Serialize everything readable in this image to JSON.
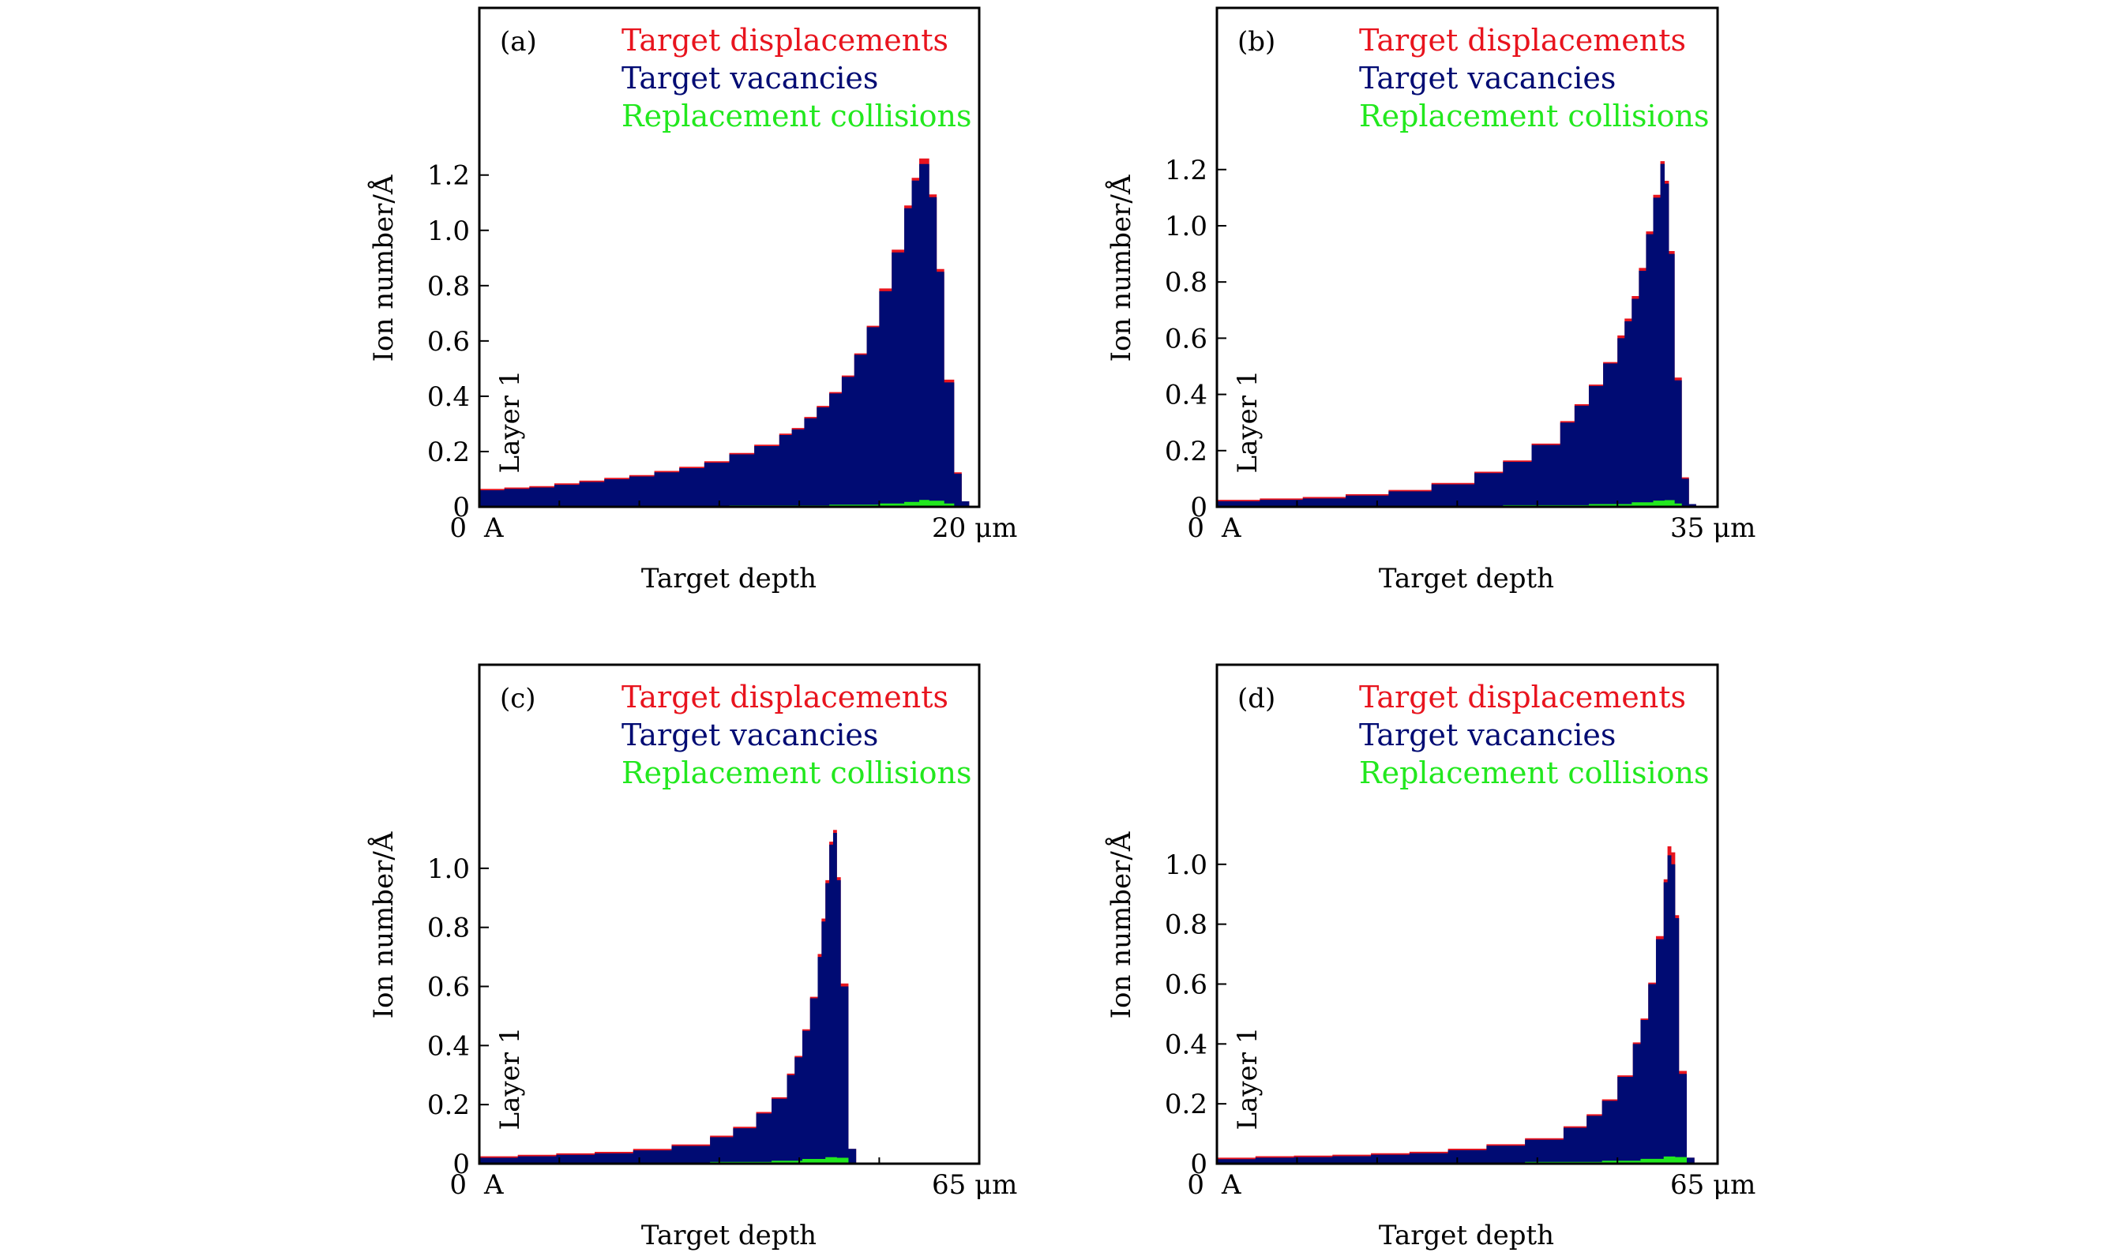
{
  "colors": {
    "displacements": "#e8141e",
    "vacancies": "#000b73",
    "replacements": "#22e81e",
    "axis": "#000000",
    "background": "#ffffff"
  },
  "chart_data": [
    {
      "type": "area",
      "panel_label": "(a)",
      "xlabel": "Target depth",
      "ylabel": "Ion number/Å",
      "x_tick_labels": {
        "start": "0",
        "start_marker": "A",
        "end": "20 μm"
      },
      "layer_label": "Layer 1",
      "xlim": [
        0,
        20
      ],
      "ylim": [
        0,
        1.2
      ],
      "yticks": [
        "0",
        "0.2",
        "0.4",
        "0.6",
        "0.8",
        "1.0",
        "1.2"
      ],
      "grid": false,
      "legend_position": "top-right",
      "legend": [
        "Target displacements",
        "Target vacancies",
        "Replacement collisions"
      ],
      "x_unit": "μm",
      "series": [
        {
          "name": "Target vacancies",
          "x": [
            0,
            1,
            2,
            3,
            4,
            5,
            6,
            7,
            8,
            9,
            10,
            11,
            12,
            12.5,
            13,
            13.5,
            14,
            14.5,
            15,
            15.5,
            16,
            16.5,
            17,
            17.3,
            17.6,
            18,
            18.3,
            18.6,
            19,
            19.3,
            19.6,
            20
          ],
          "values": [
            0.06,
            0.065,
            0.07,
            0.08,
            0.09,
            0.1,
            0.11,
            0.125,
            0.14,
            0.16,
            0.19,
            0.22,
            0.26,
            0.28,
            0.32,
            0.36,
            0.41,
            0.47,
            0.55,
            0.65,
            0.78,
            0.92,
            1.08,
            1.18,
            1.24,
            1.12,
            0.85,
            0.45,
            0.12,
            0.02,
            0.0,
            0.0
          ]
        },
        {
          "name": "Target displacements",
          "x": [
            0,
            1,
            2,
            3,
            4,
            5,
            6,
            7,
            8,
            9,
            10,
            11,
            12,
            12.5,
            13,
            13.5,
            14,
            14.5,
            15,
            15.5,
            16,
            16.5,
            17,
            17.3,
            17.6,
            18,
            18.3,
            18.6,
            19,
            19.3,
            19.6,
            20
          ],
          "values": [
            0.065,
            0.07,
            0.075,
            0.085,
            0.095,
            0.105,
            0.115,
            0.13,
            0.145,
            0.165,
            0.195,
            0.225,
            0.265,
            0.285,
            0.325,
            0.365,
            0.415,
            0.475,
            0.555,
            0.655,
            0.79,
            0.93,
            1.09,
            1.19,
            1.26,
            1.13,
            0.86,
            0.46,
            0.125,
            0.02,
            0.0,
            0.0
          ]
        },
        {
          "name": "Replacement collisions",
          "x": [
            0,
            5,
            10,
            14,
            16,
            17,
            17.6,
            18,
            18.6,
            19,
            20
          ],
          "values": [
            0.002,
            0.003,
            0.005,
            0.008,
            0.012,
            0.018,
            0.025,
            0.022,
            0.012,
            0.003,
            0.0
          ]
        }
      ]
    },
    {
      "type": "area",
      "panel_label": "(b)",
      "xlabel": "Target depth",
      "ylabel": "Ion number/Å",
      "x_tick_labels": {
        "start": "0",
        "start_marker": "A",
        "end": "35 μm"
      },
      "layer_label": "Layer 1",
      "xlim": [
        0,
        35
      ],
      "ylim": [
        0,
        1.2
      ],
      "yticks": [
        "0",
        "0.2",
        "0.4",
        "0.6",
        "0.8",
        "1.0",
        "1.2"
      ],
      "grid": false,
      "legend_position": "top-right",
      "legend": [
        "Target displacements",
        "Target vacancies",
        "Replacement collisions"
      ],
      "x_unit": "μm",
      "series": [
        {
          "name": "Target vacancies",
          "x": [
            0,
            3,
            6,
            9,
            12,
            15,
            18,
            20,
            22,
            24,
            25,
            26,
            27,
            28,
            28.5,
            29,
            29.5,
            30,
            30.5,
            31,
            31.3,
            31.6,
            32,
            32.5,
            33,
            33.5,
            35
          ],
          "values": [
            0.02,
            0.025,
            0.03,
            0.04,
            0.055,
            0.08,
            0.12,
            0.16,
            0.22,
            0.3,
            0.36,
            0.43,
            0.51,
            0.6,
            0.66,
            0.74,
            0.84,
            0.97,
            1.1,
            1.22,
            1.15,
            0.9,
            0.45,
            0.1,
            0.01,
            0.0,
            0.0
          ]
        },
        {
          "name": "Target displacements",
          "x": [
            0,
            3,
            6,
            9,
            12,
            15,
            18,
            20,
            22,
            24,
            25,
            26,
            27,
            28,
            28.5,
            29,
            29.5,
            30,
            30.5,
            31,
            31.3,
            31.6,
            32,
            32.5,
            33,
            33.5,
            35
          ],
          "values": [
            0.025,
            0.03,
            0.035,
            0.045,
            0.06,
            0.085,
            0.125,
            0.165,
            0.225,
            0.305,
            0.365,
            0.435,
            0.515,
            0.61,
            0.67,
            0.75,
            0.85,
            0.98,
            1.11,
            1.23,
            1.16,
            0.91,
            0.46,
            0.105,
            0.01,
            0.0,
            0.0
          ]
        },
        {
          "name": "Replacement collisions",
          "x": [
            0,
            10,
            20,
            26,
            29,
            30.5,
            31.3,
            32,
            32.5,
            35
          ],
          "values": [
            0.002,
            0.003,
            0.006,
            0.01,
            0.016,
            0.022,
            0.024,
            0.012,
            0.002,
            0.0
          ]
        }
      ]
    },
    {
      "type": "area",
      "panel_label": "(c)",
      "xlabel": "Target depth",
      "ylabel": "Ion number/Å",
      "x_tick_labels": {
        "start": "0",
        "start_marker": "A",
        "end": "65 μm"
      },
      "layer_label": "Layer 1",
      "xlim": [
        0,
        65
      ],
      "ylim": [
        0,
        1.0
      ],
      "yticks": [
        "0",
        "0.2",
        "0.4",
        "0.6",
        "0.8",
        "1.0"
      ],
      "grid": false,
      "legend_position": "top-right",
      "legend": [
        "Target displacements",
        "Target vacancies",
        "Replacement collisions"
      ],
      "x_unit": "μm",
      "series": [
        {
          "name": "Target vacancies",
          "x": [
            0,
            5,
            10,
            15,
            20,
            25,
            30,
            33,
            36,
            38,
            40,
            41,
            42,
            43,
            44,
            44.5,
            45,
            45.5,
            46,
            46.5,
            47,
            48,
            49,
            50,
            65
          ],
          "values": [
            0.02,
            0.025,
            0.03,
            0.035,
            0.045,
            0.06,
            0.09,
            0.12,
            0.17,
            0.22,
            0.3,
            0.36,
            0.45,
            0.56,
            0.7,
            0.82,
            0.95,
            1.08,
            1.12,
            0.96,
            0.6,
            0.05,
            0.0,
            0.0,
            0.0
          ]
        },
        {
          "name": "Target displacements",
          "x": [
            0,
            5,
            10,
            15,
            20,
            25,
            30,
            33,
            36,
            38,
            40,
            41,
            42,
            43,
            44,
            44.5,
            45,
            45.5,
            46,
            46.5,
            47,
            48,
            49,
            50,
            65
          ],
          "values": [
            0.025,
            0.03,
            0.035,
            0.04,
            0.05,
            0.065,
            0.095,
            0.125,
            0.175,
            0.225,
            0.305,
            0.365,
            0.455,
            0.565,
            0.71,
            0.83,
            0.96,
            1.09,
            1.13,
            0.97,
            0.61,
            0.05,
            0.0,
            0.0,
            0.0
          ]
        },
        {
          "name": "Replacement collisions",
          "x": [
            0,
            10,
            20,
            30,
            38,
            42,
            45,
            46.5,
            48,
            65
          ],
          "values": [
            0.002,
            0.003,
            0.004,
            0.006,
            0.01,
            0.016,
            0.022,
            0.02,
            0.002,
            0.0
          ]
        }
      ]
    },
    {
      "type": "area",
      "panel_label": "(d)",
      "xlabel": "Target depth",
      "ylabel": "Ion number/Å",
      "x_tick_labels": {
        "start": "0",
        "start_marker": "A",
        "end": "65 μm"
      },
      "layer_label": "Layer 1",
      "xlim": [
        0,
        65
      ],
      "ylim": [
        0,
        1.0
      ],
      "yticks": [
        "0",
        "0.2",
        "0.4",
        "0.6",
        "0.8",
        "1.0"
      ],
      "grid": false,
      "legend_position": "top-right",
      "legend": [
        "Target displacements",
        "Target vacancies",
        "Replacement collisions"
      ],
      "x_unit": "μm",
      "series": [
        {
          "name": "Target vacancies",
          "x": [
            0,
            5,
            10,
            15,
            20,
            25,
            30,
            35,
            40,
            45,
            48,
            50,
            52,
            54,
            55,
            56,
            57,
            58,
            58.5,
            59,
            59.5,
            60,
            61,
            62,
            65
          ],
          "values": [
            0.015,
            0.02,
            0.022,
            0.025,
            0.03,
            0.035,
            0.045,
            0.06,
            0.08,
            0.12,
            0.16,
            0.21,
            0.29,
            0.4,
            0.48,
            0.6,
            0.75,
            0.94,
            1.03,
            1.0,
            0.82,
            0.3,
            0.02,
            0.0,
            0.0
          ]
        },
        {
          "name": "Target displacements",
          "x": [
            0,
            5,
            10,
            15,
            20,
            25,
            30,
            35,
            40,
            45,
            48,
            50,
            52,
            54,
            55,
            56,
            57,
            58,
            58.5,
            59,
            59.5,
            60,
            61,
            62,
            65
          ],
          "values": [
            0.02,
            0.025,
            0.027,
            0.03,
            0.035,
            0.04,
            0.05,
            0.065,
            0.085,
            0.125,
            0.165,
            0.215,
            0.295,
            0.405,
            0.485,
            0.605,
            0.76,
            0.95,
            1.06,
            1.04,
            0.83,
            0.31,
            0.02,
            0.0,
            0.0
          ]
        },
        {
          "name": "Replacement collisions",
          "x": [
            0,
            10,
            20,
            30,
            40,
            50,
            55,
            58,
            59.5,
            61,
            65
          ],
          "values": [
            0.002,
            0.002,
            0.003,
            0.004,
            0.006,
            0.01,
            0.016,
            0.024,
            0.022,
            0.002,
            0.0
          ]
        }
      ]
    }
  ]
}
